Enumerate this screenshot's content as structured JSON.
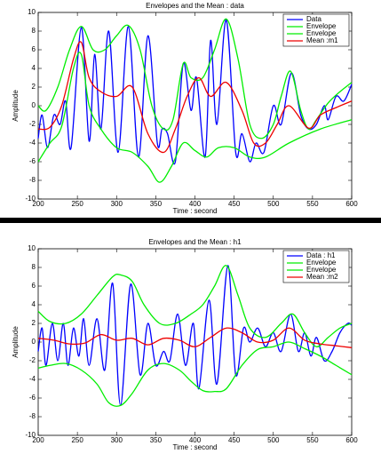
{
  "chart_data": [
    {
      "type": "line",
      "title": "Envelopes and the Mean : data",
      "xlabel": "Time : second",
      "ylabel": "Amplitude",
      "xlim": [
        200,
        600
      ],
      "xticks": [
        200,
        250,
        300,
        350,
        400,
        450,
        500,
        550,
        600
      ],
      "ylim": [
        -10,
        10
      ],
      "yticks": [
        -10,
        -8,
        -6,
        -4,
        -2,
        0,
        2,
        4,
        6,
        8,
        10
      ],
      "legend": "upper right",
      "grid": false,
      "series": [
        {
          "name": "Data",
          "color": "#0000ff",
          "x": [
            200,
            205,
            212,
            220,
            228,
            235,
            242,
            255,
            265,
            272,
            280,
            290,
            302,
            315,
            328,
            340,
            352,
            358,
            365,
            375,
            385,
            395,
            402,
            413,
            420,
            428,
            440,
            452,
            460,
            470,
            478,
            488,
            500,
            510,
            523,
            535,
            545,
            555,
            565,
            570,
            580,
            590,
            600
          ],
          "values": [
            -3.5,
            -1,
            -4.5,
            -1,
            -2,
            0.5,
            -4.5,
            8.4,
            -3.8,
            5.5,
            -2.5,
            8,
            -5,
            8.5,
            -5.5,
            7.5,
            -4,
            -2.5,
            -3,
            -6,
            4.5,
            -0.5,
            3,
            -5.5,
            7,
            -2,
            9.2,
            -5,
            -3,
            -6,
            -4,
            -5,
            0,
            -2,
            3.5,
            -1,
            -2.5,
            -2,
            0,
            -1.5,
            1,
            0.5,
            2.3
          ]
        },
        {
          "name": "Envelope",
          "color": "#00ee00",
          "x": [
            200,
            210,
            225,
            240,
            255,
            270,
            285,
            300,
            315,
            330,
            345,
            360,
            372,
            385,
            395,
            410,
            425,
            440,
            455,
            470,
            485,
            500,
            510,
            522,
            535,
            545,
            555,
            570,
            585,
            600
          ],
          "values": [
            0,
            -0.5,
            2,
            6,
            8.5,
            6,
            6,
            7.5,
            8.6,
            6,
            0,
            -2.5,
            -1.5,
            4.5,
            3,
            3,
            6,
            9.3,
            5,
            -2,
            -3.5,
            -2,
            1,
            3.7,
            -0.5,
            -2.5,
            -1.5,
            0.3,
            1.5,
            2.5
          ]
        },
        {
          "name": "Envelope",
          "color": "#00ee00",
          "x": [
            200,
            215,
            230,
            245,
            255,
            265,
            280,
            300,
            320,
            340,
            355,
            370,
            385,
            400,
            415,
            430,
            450,
            470,
            490,
            520,
            560,
            600
          ],
          "values": [
            -6,
            -4,
            -2.2,
            4,
            5.5,
            0,
            -2.5,
            -4.5,
            -5,
            -6.5,
            -8.2,
            -6.5,
            -4,
            -4.8,
            -5.5,
            -4.5,
            -4.5,
            -5.5,
            -5.5,
            -4,
            -2.5,
            -1.5
          ]
        },
        {
          "name": "Mean :m1",
          "color": "#ee0000",
          "x": [
            200,
            215,
            230,
            245,
            255,
            265,
            280,
            300,
            320,
            340,
            360,
            375,
            390,
            405,
            420,
            440,
            460,
            475,
            490,
            505,
            520,
            545,
            560,
            580,
            600
          ],
          "values": [
            -2.5,
            -2.3,
            0,
            5,
            6.8,
            3,
            1.5,
            1,
            2,
            -3,
            -5,
            -2.5,
            1,
            3,
            1,
            2.5,
            -0.5,
            -4,
            -4,
            -2,
            0,
            -2.4,
            -1,
            -0.2,
            0.5
          ]
        }
      ]
    },
    {
      "type": "line",
      "title": "Envelopes and the Mean : h1",
      "xlabel": "Time : second",
      "ylabel": "Amplitude",
      "xlim": [
        200,
        600
      ],
      "xticks": [
        200,
        250,
        300,
        350,
        400,
        450,
        500,
        550,
        600
      ],
      "ylim": [
        -10,
        10
      ],
      "yticks": [
        -10,
        -8,
        -6,
        -4,
        -2,
        0,
        2,
        4,
        6,
        8,
        10
      ],
      "legend": "upper right",
      "grid": false,
      "series": [
        {
          "name": "Data : h1",
          "color": "#0000ff",
          "x": [
            200,
            205,
            210,
            218,
            225,
            232,
            238,
            245,
            252,
            258,
            265,
            275,
            285,
            295,
            305,
            318,
            330,
            340,
            350,
            360,
            368,
            378,
            388,
            398,
            405,
            418,
            428,
            442,
            452,
            462,
            470,
            480,
            490,
            500,
            510,
            522,
            532,
            540,
            548,
            555,
            565,
            575,
            585,
            595,
            600
          ],
          "values": [
            -1,
            1.5,
            -2.5,
            2,
            -2,
            2,
            -2.5,
            1.5,
            -1.5,
            2.5,
            -2.5,
            2.5,
            -3,
            6.3,
            -6.8,
            6.2,
            -3.5,
            2,
            -2.5,
            -1,
            -2,
            3,
            -2.5,
            2,
            -5,
            4.5,
            -4.5,
            8.2,
            -3.5,
            1.5,
            0,
            1.5,
            -0.5,
            1,
            -1,
            3,
            -1,
            1,
            -1.5,
            0.5,
            -2,
            -1,
            1,
            2,
            1.8
          ]
        },
        {
          "name": "Envelope",
          "color": "#00ee00",
          "x": [
            200,
            215,
            235,
            255,
            275,
            295,
            305,
            320,
            335,
            355,
            375,
            395,
            410,
            425,
            440,
            455,
            470,
            490,
            510,
            525,
            540,
            555,
            570,
            585,
            600
          ],
          "values": [
            3.3,
            2.2,
            2,
            3,
            5,
            7,
            7.2,
            6.5,
            4,
            2,
            2,
            3,
            4,
            6,
            8.2,
            5,
            1.5,
            0.5,
            2,
            3,
            1,
            -0.5,
            0.5,
            1.5,
            2
          ]
        },
        {
          "name": "Envelope",
          "color": "#00ee00",
          "x": [
            200,
            215,
            235,
            255,
            275,
            290,
            305,
            320,
            340,
            360,
            380,
            395,
            410,
            425,
            440,
            460,
            480,
            500,
            520,
            540,
            560,
            580,
            600
          ],
          "values": [
            -2.8,
            -2.5,
            -2.3,
            -3,
            -4.5,
            -6.5,
            -6.8,
            -5.5,
            -3,
            -2.3,
            -3,
            -4.2,
            -5.2,
            -5.3,
            -5,
            -2.5,
            -0.8,
            -0.5,
            0,
            -0.7,
            -1.5,
            -2.5,
            -3.5
          ]
        },
        {
          "name": "Mean :m2",
          "color": "#ee0000",
          "x": [
            200,
            220,
            240,
            260,
            280,
            300,
            320,
            340,
            360,
            380,
            400,
            420,
            440,
            460,
            480,
            500,
            520,
            540,
            560,
            580,
            600
          ],
          "values": [
            0.4,
            0.2,
            -0.2,
            -0.1,
            0.8,
            0.2,
            0.4,
            -0.3,
            0.4,
            0.2,
            -0.5,
            0.5,
            1.5,
            1,
            0,
            0.2,
            1.5,
            0.2,
            -0.2,
            -0.4,
            -0.6
          ]
        }
      ]
    }
  ]
}
